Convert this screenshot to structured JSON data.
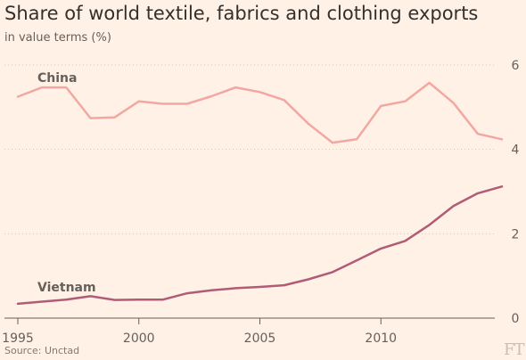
{
  "header": {
    "title": "Share of world textile, fabrics and clothing exports",
    "subtitle": "in value terms (%)"
  },
  "footer": {
    "source": "Source: Unctad",
    "logo_text": "FT"
  },
  "chart_data": {
    "type": "line",
    "title": "Share of world textile, fabrics and clothing exports",
    "subtitle": "in value terms (%)",
    "xlabel": "",
    "ylabel": "",
    "x": [
      1995,
      1996,
      1997,
      1998,
      1999,
      2000,
      2001,
      2002,
      2003,
      2004,
      2005,
      2006,
      2007,
      2008,
      2009,
      2010,
      2011,
      2012,
      2013,
      2014,
      2015
    ],
    "xlim": [
      1995,
      2015
    ],
    "ylim": [
      0,
      6
    ],
    "x_ticks": [
      1995,
      2000,
      2005,
      2010
    ],
    "y_ticks": [
      0,
      2,
      4,
      6
    ],
    "grid": "horizontal dotted",
    "y_axis_side": "right",
    "series": [
      {
        "name": "China",
        "color": "#f2a7a2",
        "values": [
          5.25,
          5.47,
          5.47,
          4.74,
          4.76,
          5.14,
          5.08,
          5.08,
          5.26,
          5.47,
          5.36,
          5.17,
          4.61,
          4.16,
          4.24,
          5.03,
          5.14,
          5.58,
          5.1,
          4.37,
          4.24
        ]
      },
      {
        "name": "Vietnam",
        "color": "#b05c78",
        "values": [
          0.34,
          0.39,
          0.44,
          0.52,
          0.43,
          0.44,
          0.44,
          0.59,
          0.66,
          0.71,
          0.74,
          0.78,
          0.92,
          1.09,
          1.37,
          1.65,
          1.83,
          2.21,
          2.66,
          2.96,
          3.12
        ]
      }
    ]
  }
}
